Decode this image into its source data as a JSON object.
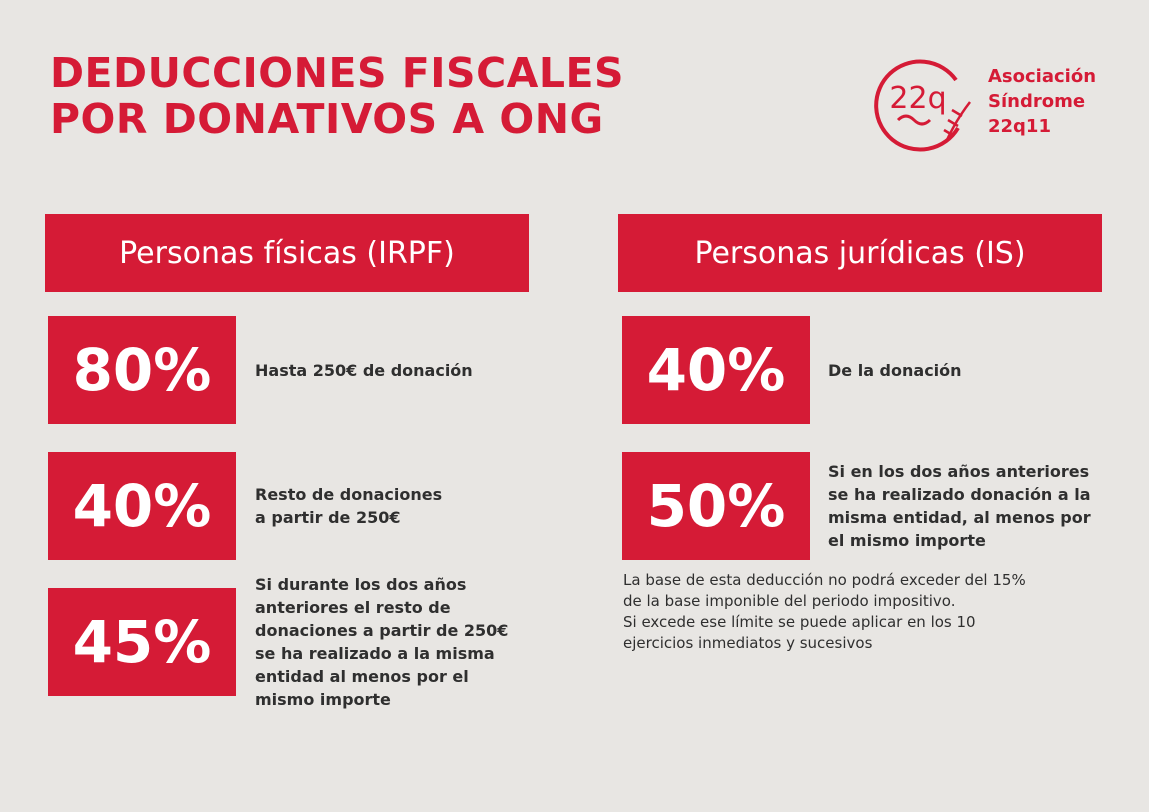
{
  "header": {
    "title": [
      "DEDUCCIONES FISCALES",
      "POR DONATIVOS A ONG"
    ],
    "logo": {
      "mark": "22q",
      "text": [
        "Asociación",
        "Síndrome",
        "22q11"
      ]
    }
  },
  "columns": [
    {
      "heading": "Personas físicas (IRPF)",
      "items": [
        {
          "percent": "80%",
          "text": [
            "Hasta 250€ de donación"
          ]
        },
        {
          "percent": "40%",
          "text": [
            "Resto de donaciones",
            "a partir de 250€"
          ]
        },
        {
          "percent": "45%",
          "text": [
            "Si durante los dos años",
            "anteriores el resto de",
            "donaciones a partir de 250€",
            "se ha realizado a la misma",
            "entidad al menos por el",
            "mismo importe"
          ]
        }
      ]
    },
    {
      "heading": "Personas jurídicas (IS)",
      "items": [
        {
          "percent": "40%",
          "text": [
            "De la donación"
          ]
        },
        {
          "percent": "50%",
          "text": [
            "Si en los dos años anteriores",
            "se ha realizado donación a la",
            "misma entidad, al menos por",
            "el mismo importe"
          ]
        }
      ],
      "note": [
        "La base de esta deducción no podrá exceder del 15%",
        "de la base imponible del periodo impositivo.",
        "Si excede ese límite se puede aplicar en los 10",
        "ejercicios inmediatos y sucesivos"
      ]
    }
  ]
}
